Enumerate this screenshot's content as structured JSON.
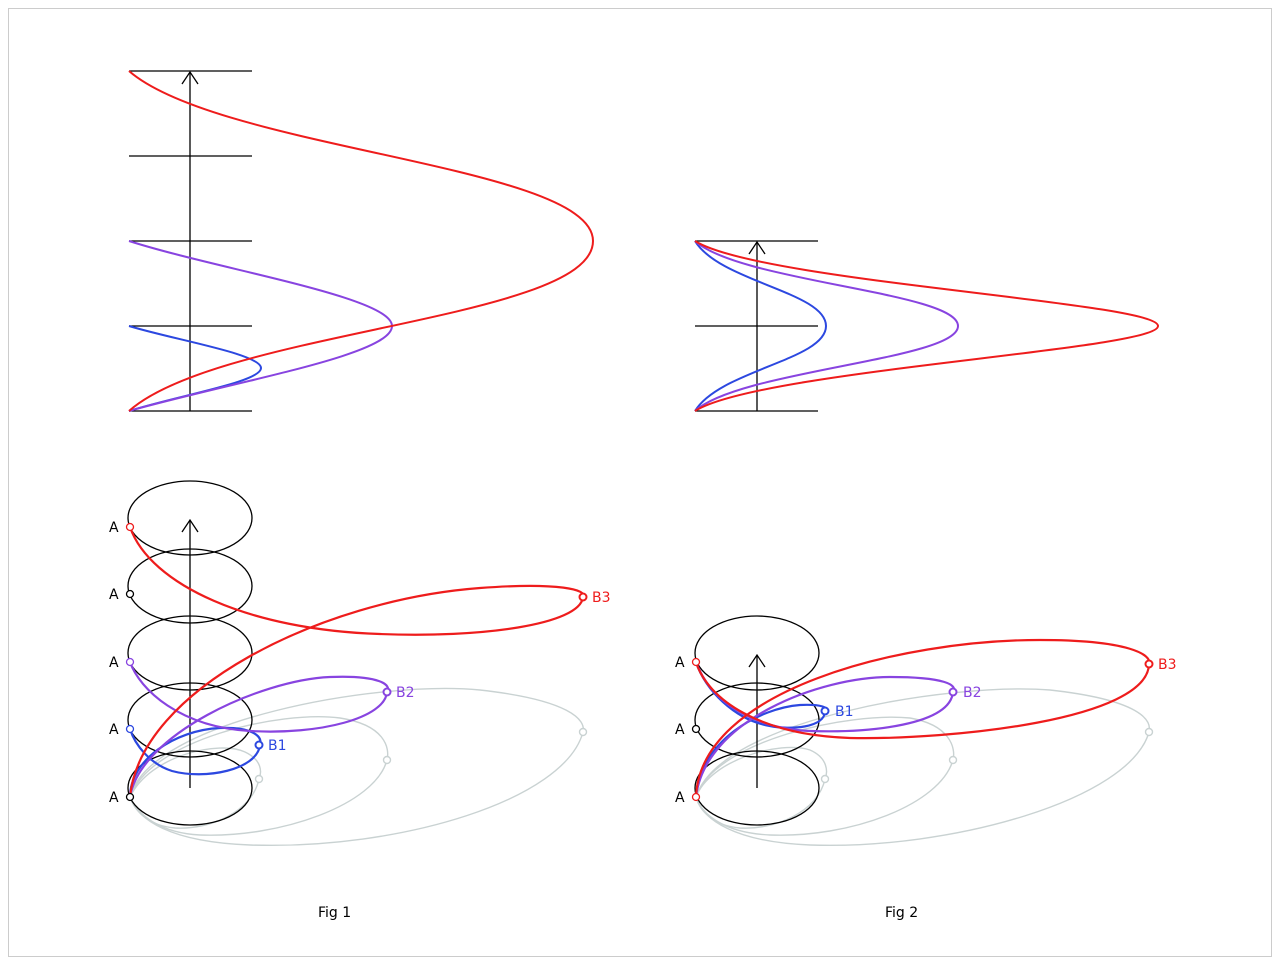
{
  "colors": {
    "blue": "#2c48e0",
    "purple": "#8844e0",
    "red": "#ee1c1c",
    "ghost": "#c9d2d2",
    "frame": "#cccccc"
  },
  "fig1": {
    "caption": "Fig 1",
    "point_label": "A",
    "b_labels": [
      "B1",
      "B2",
      "B3"
    ]
  },
  "fig2": {
    "caption": "Fig 2",
    "point_label": "A",
    "b_labels": [
      "B1",
      "B2",
      "B3"
    ]
  }
}
